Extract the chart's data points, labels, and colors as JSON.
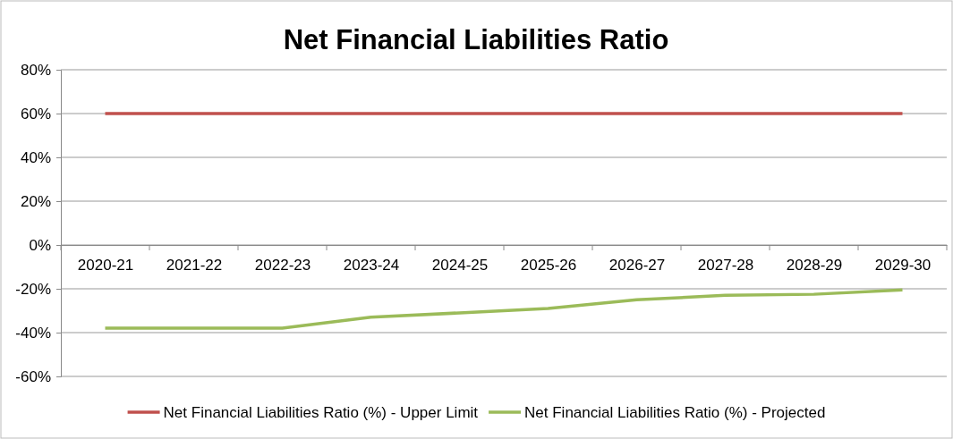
{
  "chart_data": {
    "type": "line",
    "title": "Net Financial Liabilities Ratio",
    "categories": [
      "2020-21",
      "2021-22",
      "2022-23",
      "2023-24",
      "2024-25",
      "2025-26",
      "2026-27",
      "2027-28",
      "2028-29",
      "2029-30"
    ],
    "series": [
      {
        "name": "Net Financial Liabilities Ratio (%) - Upper Limit",
        "color": "#c0504d",
        "values": [
          60,
          60,
          60,
          60,
          60,
          60,
          60,
          60,
          60,
          60
        ]
      },
      {
        "name": "Net Financial Liabilities Ratio (%) - Projected",
        "color": "#9bbb59",
        "values": [
          -38,
          -38,
          -38,
          -33,
          -31,
          -29,
          -25,
          -23,
          -22.5,
          -20.5
        ]
      }
    ],
    "ylim": [
      -60,
      80
    ],
    "yticks": [
      {
        "value": -60,
        "label": "-60%"
      },
      {
        "value": -40,
        "label": "-40%"
      },
      {
        "value": -20,
        "label": "-20%"
      },
      {
        "value": 0,
        "label": "0%"
      },
      {
        "value": 20,
        "label": "20%"
      },
      {
        "value": 40,
        "label": "40%"
      },
      {
        "value": 60,
        "label": "60%"
      },
      {
        "value": 80,
        "label": "80%"
      }
    ],
    "grid": "y",
    "legend": "bottom",
    "marker": "none",
    "line_style": "solid"
  }
}
